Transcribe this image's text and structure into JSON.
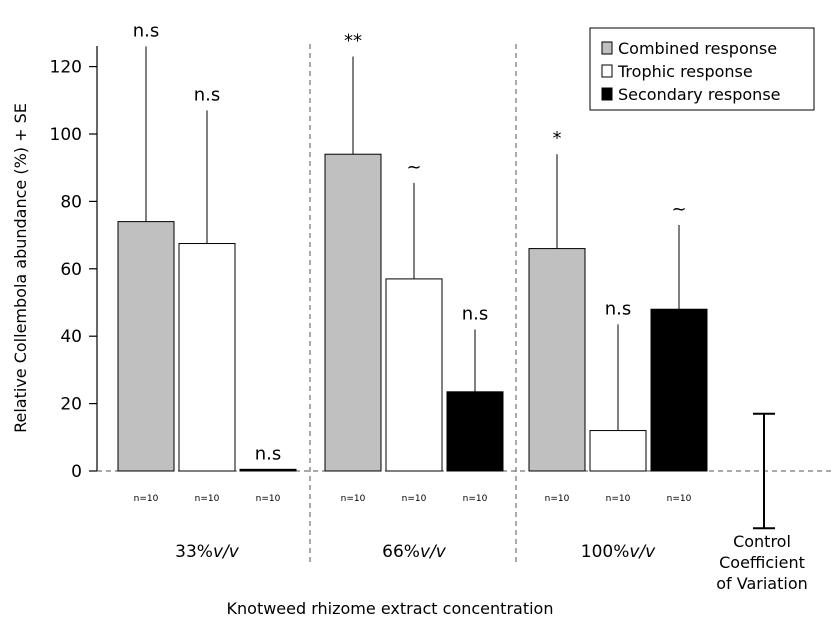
{
  "chart_data": {
    "type": "bar",
    "xlabel": "Knotweed rhizome extract concentration",
    "ylabel": "Relative Collembola abundance (%) + SE",
    "ylim": [
      0,
      130
    ],
    "yticks": [
      0,
      20,
      40,
      60,
      80,
      100,
      120
    ],
    "categories": [
      {
        "label": "33%",
        "suffix": "v/v"
      },
      {
        "label": "66%",
        "suffix": "v/v"
      },
      {
        "label": "100%",
        "suffix": "v/v"
      }
    ],
    "legend": {
      "position": "top-right",
      "entries": [
        {
          "name": "Combined response",
          "color": "#c0c0c0"
        },
        {
          "name": "Trophic response",
          "color": "#ffffff"
        },
        {
          "name": "Secondary response",
          "color": "#000000"
        }
      ]
    },
    "series": [
      {
        "name": "Combined response",
        "color": "#c0c0c0",
        "values": [
          74,
          94,
          66
        ],
        "error": [
          52,
          29,
          28
        ],
        "significance": [
          "n.s",
          "**",
          "*"
        ],
        "n": [
          "n=10",
          "n=10",
          "n=10"
        ]
      },
      {
        "name": "Trophic response",
        "color": "#ffffff",
        "values": [
          67.5,
          57,
          12
        ],
        "error": [
          39.5,
          28.5,
          31.5
        ],
        "significance": [
          "n.s",
          "~",
          "n.s"
        ],
        "n": [
          "n=10",
          "n=10",
          "n=10"
        ]
      },
      {
        "name": "Secondary response",
        "color": "#000000",
        "values": [
          0.5,
          23.5,
          48
        ],
        "error": [
          0,
          18.5,
          25
        ],
        "significance": [
          "n.s",
          "n.s",
          "~"
        ],
        "n": [
          "n=10",
          "n=10",
          "n=10"
        ]
      }
    ],
    "control": {
      "label_lines": [
        "Control",
        "Coefficient",
        "of Variation"
      ],
      "range": [
        -17,
        17
      ]
    },
    "zero_line": "dashed",
    "group_separators": "dashed",
    "grid": false
  }
}
